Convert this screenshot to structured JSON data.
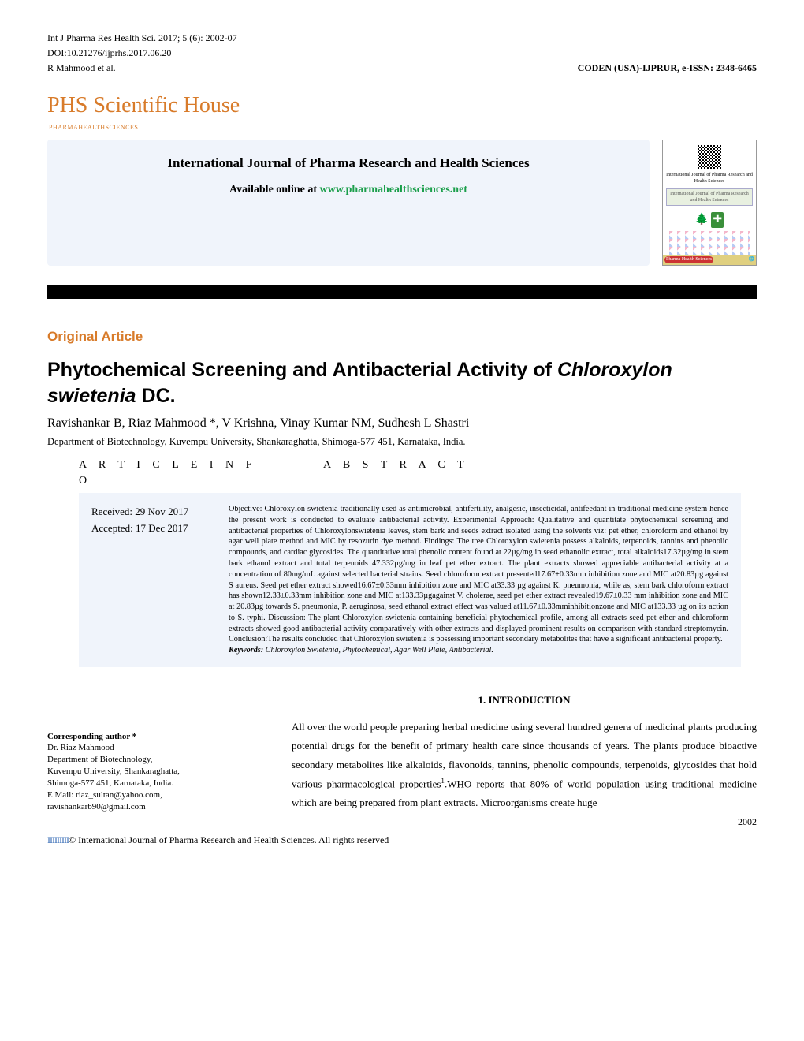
{
  "header": {
    "citation": "Int J Pharma Res Health Sci. 2017; 5 (6): 2002-07",
    "doi": "DOI:10.21276/ijprhs.2017.06.20",
    "author_short": "R Mahmood et al.",
    "coden": "CODEN (USA)-IJPRUR, e-ISSN: 2348-6465"
  },
  "publisher": {
    "name": "PHS Scientific House",
    "subtitle": "PHARMAHEALTHSCIENCES"
  },
  "journal": {
    "title": "International Journal of Pharma Research and Health Sciences",
    "available_prefix": "Available online at ",
    "url": "www.pharmahealthsciences.net",
    "cover_title": "International Journal of Pharma Research and Health Sciences",
    "cover_footer_left": "Pharma Health Sciences",
    "cover_green_square": "✚"
  },
  "article": {
    "type": "Original Article",
    "title_plain_1": "Phytochemical Screening and Antibacterial Activity of ",
    "title_species": "Chloroxylon swietenia",
    "title_plain_2": " DC.",
    "authors": "Ravishankar B, Riaz Mahmood *, V Krishna, Vinay Kumar NM, Sudhesh L Shastri",
    "affiliation": "Department of Biotechnology, Kuvempu University, Shankaraghatta, Shimoga-577 451, Karnataka, India."
  },
  "labels": {
    "article_info": "A R T I C L E  I N F O",
    "abstract": "A B S T R A C T"
  },
  "dates": {
    "received": "Received: 29 Nov 2017",
    "accepted": "Accepted: 17 Dec 2017"
  },
  "abstract": {
    "text": "Objective: Chloroxylon swietenia traditionally used as antimicrobial, antifertility, analgesic, insecticidal, antifeedant in traditional medicine system hence the present work is conducted to evaluate antibacterial activity. Experimental Approach: Qualitative and quantitate phytochemical screening and antibacterial properties of Chloroxylonswietenia leaves, stem bark and seeds extract isolated using the solvents viz: pet ether, chloroform and ethanol by agar well plate method and MIC by resozurin dye method. Findings: The tree Chloroxylon swietenia possess alkaloids, terpenoids, tannins and phenolic compounds, and cardiac glycosides. The quantitative total phenolic content found at 22µg/mg in seed ethanolic extract, total alkaloids17.32µg/mg in stem bark ethanol extract and total terpenoids 47.332µg/mg in leaf pet ether extract. The plant extracts showed appreciable antibacterial activity at a concentration of 80mg/mL against selected bacterial strains. Seed chloroform extract presented17.67±0.33mm inhibition zone and MIC at20.83µg against S aureus. Seed pet ether extract showed16.67±0.33mm inhibition zone and MIC at33.33 µg against K. pneumonia, while as, stem bark chloroform extract has shown12.33±0.33mm inhibition zone and MIC at133.33µgagainst V. cholerae, seed pet ether extract revealed19.67±0.33 mm inhibition zone and MIC at 20.83µg towards S. pneumonia, P. aeruginosa, seed ethanol extract effect was valued at11.67±0.33mminhibitionzone and MIC at133.33 µg on its action to S. typhi. Discussion: The plant Chloroxylon swietenia containing beneficial phytochemical profile, among all extracts seed pet ether and chloroform extracts showed good antibacterial activity comparatively with other extracts and displayed prominent results on comparison with standard streptomycin. Conclusion:The results concluded that Chloroxylon swietenia is possessing important secondary metabolites that have a significant antibacterial property.",
    "keywords_label": "Keywords:",
    "keywords": " Chloroxylon Swietenia, Phytochemical, Agar Well Plate, Antibacterial."
  },
  "intro": {
    "heading": "1. INTRODUCTION",
    "body": "All over the world people preparing herbal medicine using several hundred genera of medicinal plants producing potential drugs for the benefit of primary health care since thousands of years. The plants produce bioactive secondary metabolites like alkaloids, flavonoids, tannins, phenolic compounds, terpenoids, glycosides that hold various pharmacological properties1.WHO reports that 80% of world population using traditional medicine which are being prepared from plant extracts. Microorganisms create huge"
  },
  "corresponding": {
    "label": "Corresponding author *",
    "lines": [
      "Dr. Riaz Mahmood",
      "Department of Biotechnology,",
      "Kuvempu University, Shankaraghatta,",
      "Shimoga-577 451, Karnataka, India.",
      "E Mail: riaz_sultan@yahoo.com,",
      "ravishankarb90@gmail.com"
    ]
  },
  "page_number": "2002",
  "copyright": "© International Journal of Pharma Research and Health Sciences. All rights reserved",
  "colors": {
    "accent_orange": "#d87b2a",
    "link_green": "#1a9e4a",
    "box_bg": "#f0f4fb",
    "bar_blue": "#3a6fb7"
  }
}
